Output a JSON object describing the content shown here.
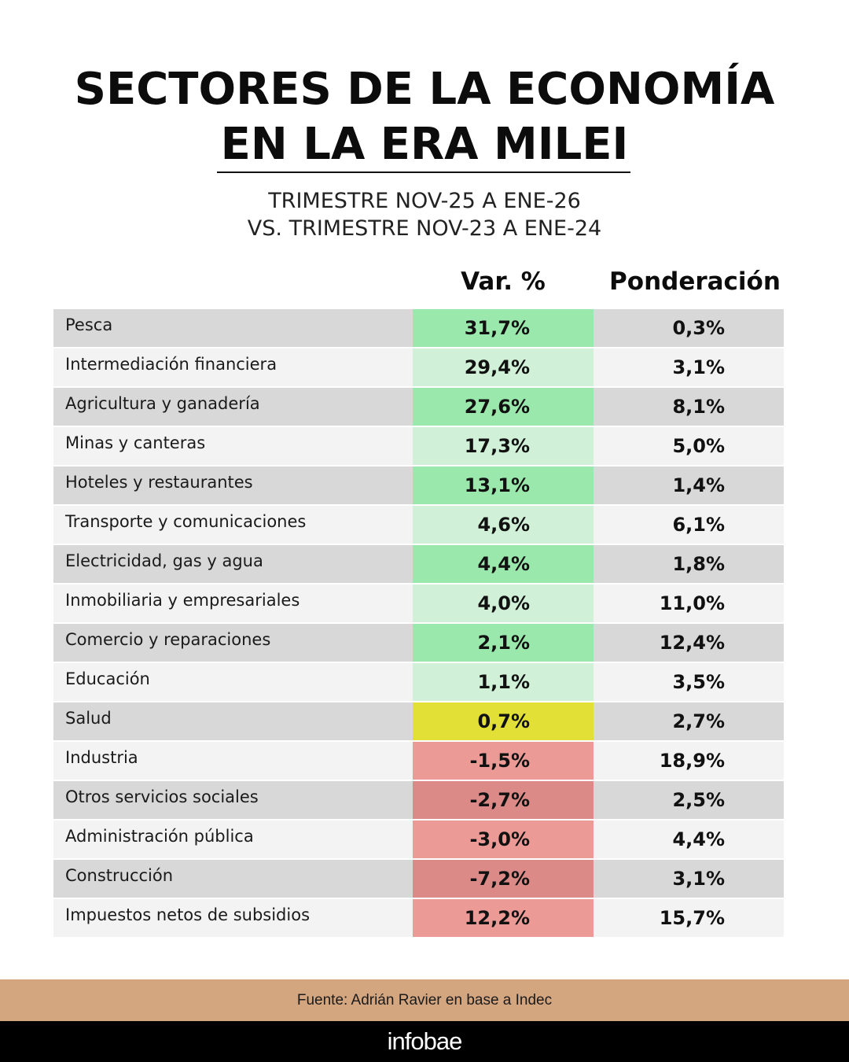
{
  "header": {
    "title_line1": "SECTORES DE LA ECONOMÍA",
    "title_line2": "EN LA ERA MILEI",
    "subtitle_line1": "TRIMESTRE NOV-25 A ENE-26",
    "subtitle_line2": "VS. TRIMESTRE NOV-23 A ENE-24"
  },
  "table": {
    "columns": [
      "",
      "Var. %",
      "Ponderación"
    ],
    "rows": [
      {
        "sector": "Pesca",
        "var": "31,7%",
        "pond": "0,3%",
        "var_color": "#9be8ad"
      },
      {
        "sector": "Intermediación financiera",
        "var": "29,4%",
        "pond": "3,1%",
        "var_color": "#d1f0d8"
      },
      {
        "sector": "Agricultura y ganadería",
        "var": "27,6%",
        "pond": "8,1%",
        "var_color": "#9be8ad"
      },
      {
        "sector": "Minas y canteras",
        "var": "17,3%",
        "pond": "5,0%",
        "var_color": "#d1f0d8"
      },
      {
        "sector": "Hoteles y restaurantes",
        "var": "13,1%",
        "pond": "1,4%",
        "var_color": "#9be8ad"
      },
      {
        "sector": "Transporte y comunicaciones",
        "var": "4,6%",
        "pond": "6,1%",
        "var_color": "#d1f0d8"
      },
      {
        "sector": "Electricidad, gas y agua",
        "var": "4,4%",
        "pond": "1,8%",
        "var_color": "#9be8ad"
      },
      {
        "sector": "Inmobiliaria y empresariales",
        "var": "4,0%",
        "pond": "11,0%",
        "var_color": "#d1f0d8"
      },
      {
        "sector": "Comercio y reparaciones",
        "var": "2,1%",
        "pond": "12,4%",
        "var_color": "#9be8ad"
      },
      {
        "sector": "Educación",
        "var": "1,1%",
        "pond": "3,5%",
        "var_color": "#d1f0d8"
      },
      {
        "sector": "Salud",
        "var": "0,7%",
        "pond": "2,7%",
        "var_color": "#e2df36"
      },
      {
        "sector": "Industria",
        "var": "-1,5%",
        "pond": "18,9%",
        "var_color": "#eb9a96"
      },
      {
        "sector": "Otros servicios sociales",
        "var": "-2,7%",
        "pond": "2,5%",
        "var_color": "#dc8a87"
      },
      {
        "sector": "Administración pública",
        "var": "-3,0%",
        "pond": "4,4%",
        "var_color": "#eb9a96"
      },
      {
        "sector": "Construcción",
        "var": "-7,2%",
        "pond": "3,1%",
        "var_color": "#dc8a87"
      },
      {
        "sector": "Impuestos netos de subsidios",
        "var": "12,2%",
        "pond": "15,7%",
        "var_color": "#eb9a96"
      }
    ]
  },
  "footer": {
    "source": "Fuente: Adrián Ravier en base a Indec",
    "brand": "infobae"
  },
  "colors": {
    "green_strong": "#9be8ad",
    "green_light": "#d1f0d8",
    "yellow": "#e2df36",
    "red_light": "#eb9a96",
    "red_dark": "#dc8a87",
    "row_dark": "#d8d8d8",
    "row_light": "#f3f3f3",
    "source_bar": "#d4a680",
    "brand_bar": "#000000"
  },
  "chart_data": {
    "type": "table",
    "title": "SECTORES DE LA ECONOMÍA EN LA ERA MILEI",
    "subtitle": "TRIMESTRE NOV-25 A ENE-26 VS. TRIMESTRE NOV-23 A ENE-24",
    "columns": [
      "Sector",
      "Var. %",
      "Ponderación"
    ],
    "categories": [
      "Pesca",
      "Intermediación financiera",
      "Agricultura y ganadería",
      "Minas y canteras",
      "Hoteles y restaurantes",
      "Transporte y comunicaciones",
      "Electricidad, gas y agua",
      "Inmobiliaria y empresariales",
      "Comercio y reparaciones",
      "Educación",
      "Salud",
      "Industria",
      "Otros servicios sociales",
      "Administración pública",
      "Construcción",
      "Impuestos netos de subsidios"
    ],
    "series": [
      {
        "name": "Var. %",
        "values": [
          31.7,
          29.4,
          27.6,
          17.3,
          13.1,
          4.6,
          4.4,
          4.0,
          2.1,
          1.1,
          0.7,
          -1.5,
          -2.7,
          -3.0,
          -7.2,
          12.2
        ]
      },
      {
        "name": "Ponderación",
        "values": [
          0.3,
          3.1,
          8.1,
          5.0,
          1.4,
          6.1,
          1.8,
          11.0,
          12.4,
          3.5,
          2.7,
          18.9,
          2.5,
          4.4,
          3.1,
          15.7
        ]
      }
    ],
    "source": "Fuente: Adrián Ravier en base a Indec"
  }
}
